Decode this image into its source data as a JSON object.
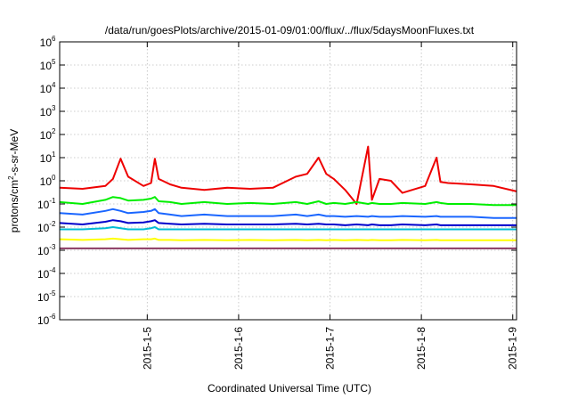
{
  "chart_data": {
    "type": "line",
    "title": "/data/run/goesPlots/archive/2015-01-09/01:00/flux/../flux/5daysMoonFluxes.txt",
    "xlabel": "Coordinated Universal Time (UTC)",
    "ylabel": {
      "prefix": "protons/cm",
      "sup": "2",
      "suffix": "-s-sr-MeV"
    },
    "y_scale": "log",
    "ylim": [
      1e-06,
      1000000.0
    ],
    "xlim": [
      "2015-01-04 01:00",
      "2015-01-09 01:00"
    ],
    "grid": true,
    "legend": "none",
    "y_ticks": [
      {
        "base": "10",
        "exp": "-6"
      },
      {
        "base": "10",
        "exp": "-5"
      },
      {
        "base": "10",
        "exp": "-4"
      },
      {
        "base": "10",
        "exp": "-3"
      },
      {
        "base": "10",
        "exp": "-2"
      },
      {
        "base": "10",
        "exp": "-1"
      },
      {
        "base": "10",
        "exp": "0"
      },
      {
        "base": "10",
        "exp": "1"
      },
      {
        "base": "10",
        "exp": "2"
      },
      {
        "base": "10",
        "exp": "3"
      },
      {
        "base": "10",
        "exp": "4"
      },
      {
        "base": "10",
        "exp": "5"
      },
      {
        "base": "10",
        "exp": "6"
      }
    ],
    "x_ticks": [
      "2015-1-5",
      "2015-1-6",
      "2015-1-7",
      "2015-1-8",
      "2015-1-9"
    ],
    "x": [
      "2015-01-04 01:00",
      "2015-01-04 07:00",
      "2015-01-04 13:00",
      "2015-01-04 15:00",
      "2015-01-04 17:00",
      "2015-01-04 19:00",
      "2015-01-04 23:00",
      "2015-01-05 01:00",
      "2015-01-05 02:00",
      "2015-01-05 03:00",
      "2015-01-05 06:00",
      "2015-01-05 09:00",
      "2015-01-05 15:00",
      "2015-01-05 21:00",
      "2015-01-06 03:00",
      "2015-01-06 09:00",
      "2015-01-06 15:00",
      "2015-01-06 18:00",
      "2015-01-06 21:00",
      "2015-01-06 23:00",
      "2015-01-07 01:00",
      "2015-01-07 04:00",
      "2015-01-07 07:00",
      "2015-01-07 10:00",
      "2015-01-07 11:00",
      "2015-01-07 13:00",
      "2015-01-07 16:00",
      "2015-01-07 19:00",
      "2015-01-08 01:00",
      "2015-01-08 04:00",
      "2015-01-08 05:00",
      "2015-01-08 07:00",
      "2015-01-08 13:00",
      "2015-01-08 19:00",
      "2015-01-09 01:00"
    ],
    "series": [
      {
        "color": "#ee0000",
        "values": [
          0.5,
          0.45,
          0.6,
          1.2,
          9,
          1.5,
          0.6,
          0.8,
          9,
          1.2,
          0.7,
          0.5,
          0.4,
          0.5,
          0.45,
          0.5,
          1.5,
          2,
          10,
          2,
          1.2,
          0.4,
          0.1,
          30,
          0.15,
          1.2,
          1.0,
          0.3,
          0.6,
          10,
          0.9,
          0.8,
          0.7,
          0.6,
          0.35
        ]
      },
      {
        "color": "#00ee00",
        "values": [
          0.12,
          0.1,
          0.15,
          0.2,
          0.18,
          0.14,
          0.15,
          0.17,
          0.2,
          0.13,
          0.12,
          0.1,
          0.12,
          0.1,
          0.11,
          0.1,
          0.12,
          0.1,
          0.13,
          0.1,
          0.11,
          0.1,
          0.12,
          0.1,
          0.11,
          0.1,
          0.1,
          0.11,
          0.1,
          0.12,
          0.11,
          0.1,
          0.1,
          0.09,
          0.09
        ]
      },
      {
        "color": "#1a66ff",
        "values": [
          0.04,
          0.035,
          0.05,
          0.06,
          0.05,
          0.04,
          0.045,
          0.05,
          0.06,
          0.04,
          0.035,
          0.03,
          0.035,
          0.03,
          0.03,
          0.03,
          0.035,
          0.03,
          0.035,
          0.03,
          0.03,
          0.028,
          0.03,
          0.028,
          0.03,
          0.028,
          0.028,
          0.03,
          0.028,
          0.03,
          0.028,
          0.028,
          0.028,
          0.025,
          0.025
        ]
      },
      {
        "color": "#0000cc",
        "values": [
          0.015,
          0.013,
          0.017,
          0.02,
          0.018,
          0.015,
          0.016,
          0.018,
          0.02,
          0.015,
          0.014,
          0.013,
          0.014,
          0.013,
          0.013,
          0.013,
          0.014,
          0.013,
          0.014,
          0.013,
          0.013,
          0.012,
          0.013,
          0.012,
          0.013,
          0.012,
          0.012,
          0.013,
          0.012,
          0.013,
          0.012,
          0.012,
          0.012,
          0.012,
          0.012
        ]
      },
      {
        "color": "#00bcd4",
        "values": [
          0.008,
          0.008,
          0.009,
          0.01,
          0.009,
          0.008,
          0.008,
          0.009,
          0.01,
          0.008,
          0.008,
          0.008,
          0.008,
          0.008,
          0.008,
          0.008,
          0.008,
          0.008,
          0.008,
          0.008,
          0.008,
          0.008,
          0.008,
          0.008,
          0.008,
          0.008,
          0.008,
          0.008,
          0.008,
          0.008,
          0.008,
          0.008,
          0.008,
          0.008,
          0.008
        ]
      },
      {
        "color": "#ffff00",
        "values": [
          0.003,
          0.0028,
          0.003,
          0.0032,
          0.003,
          0.0028,
          0.003,
          0.003,
          0.0032,
          0.0028,
          0.0028,
          0.0027,
          0.0028,
          0.0027,
          0.0028,
          0.0027,
          0.0028,
          0.0027,
          0.0028,
          0.0027,
          0.0028,
          0.0027,
          0.0028,
          0.0027,
          0.0028,
          0.0027,
          0.0027,
          0.0028,
          0.0027,
          0.0028,
          0.0027,
          0.0027,
          0.0027,
          0.0027,
          0.0027
        ]
      },
      {
        "color": "#8b3a62",
        "values": [
          0.0012,
          0.0012,
          0.0012,
          0.0012,
          0.0012,
          0.0012,
          0.0012,
          0.0012,
          0.0012,
          0.0012,
          0.0012,
          0.0012,
          0.0012,
          0.0012,
          0.0012,
          0.0012,
          0.0012,
          0.0012,
          0.0012,
          0.0012,
          0.0012,
          0.0012,
          0.0012,
          0.0012,
          0.0012,
          0.0012,
          0.0012,
          0.0012,
          0.0012,
          0.0012,
          0.0012,
          0.0012,
          0.0012,
          0.0012,
          0.0012
        ]
      }
    ]
  }
}
